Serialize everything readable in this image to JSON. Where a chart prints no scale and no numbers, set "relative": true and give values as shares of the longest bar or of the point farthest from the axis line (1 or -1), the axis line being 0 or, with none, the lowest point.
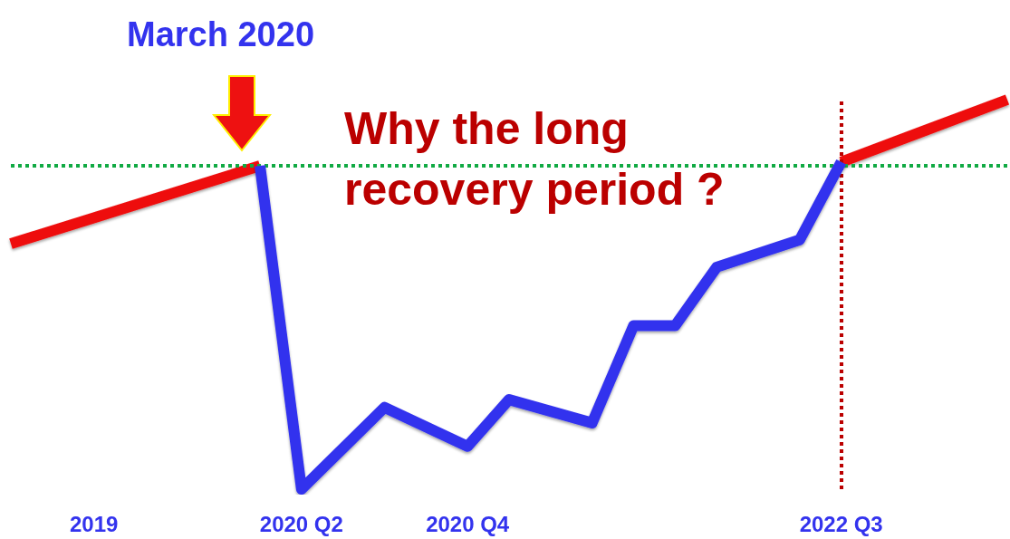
{
  "chart_data": {
    "type": "line",
    "relative": true,
    "marker": "none",
    "line_style": "solid",
    "categories": [
      null,
      null,
      "2019",
      null,
      null,
      null,
      null,
      "2020 Q2",
      null,
      null,
      null,
      "2020 Q4",
      null,
      null,
      null,
      null,
      null,
      null,
      null,
      null,
      "2022 Q3",
      null,
      null,
      null,
      null
    ],
    "series": [
      {
        "color": "#ee1111",
        "values": [
          0.63,
          null,
          null,
          null,
          null,
          null,
          0.83,
          null,
          null,
          null,
          null,
          null,
          null,
          null,
          null,
          null,
          null,
          null,
          null,
          null,
          null,
          null,
          null,
          null,
          null
        ]
      },
      {
        "color": "#ee1111",
        "values": [
          null,
          null,
          null,
          null,
          null,
          null,
          null,
          null,
          null,
          null,
          null,
          null,
          null,
          null,
          null,
          null,
          null,
          null,
          null,
          null,
          0.84,
          null,
          null,
          null,
          1
        ]
      },
      {
        "color": "#3333ee",
        "values": [
          null,
          null,
          null,
          null,
          null,
          null,
          0.83,
          0,
          null,
          0.21,
          null,
          0.11,
          0.23,
          null,
          0.17,
          0.42,
          0.42,
          0.57,
          null,
          0.64,
          0.84,
          null,
          null,
          null,
          null
        ]
      }
    ],
    "ref_lines": [
      {
        "axis": "y",
        "value": 0.83,
        "color": "#11aa44",
        "line_style": "dotted"
      },
      {
        "axis": "x",
        "value": "2022 Q3",
        "color": "#bb0000",
        "line_style": "dotted"
      }
    ],
    "annotations": [
      "March 2020",
      "Why the long recovery period ?"
    ]
  }
}
